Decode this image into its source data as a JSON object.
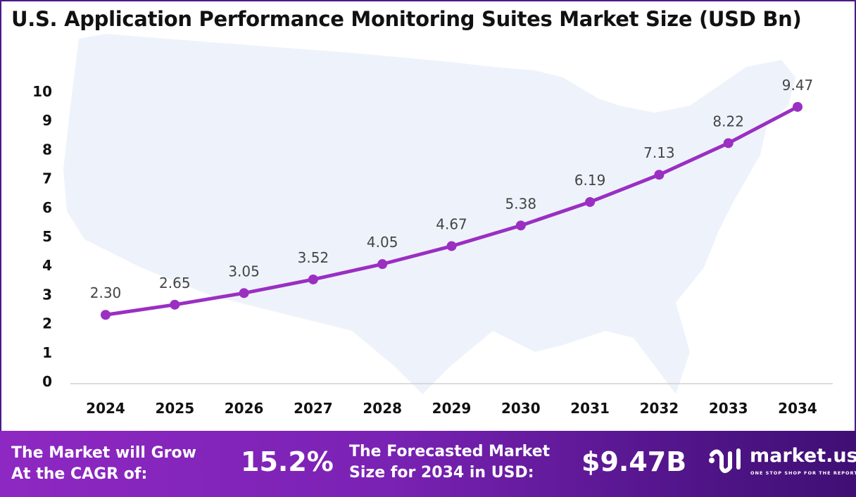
{
  "chart_data": {
    "type": "line",
    "title": "U.S. Application Performance Monitoring Suites Market Size (USD Bn)",
    "categories": [
      "2024",
      "2025",
      "2026",
      "2027",
      "2028",
      "2029",
      "2030",
      "2031",
      "2032",
      "2033",
      "2034"
    ],
    "series": [
      {
        "values": [
          2.3,
          2.65,
          3.05,
          3.52,
          4.05,
          4.67,
          5.38,
          6.19,
          7.13,
          8.22,
          9.47
        ]
      }
    ],
    "data_labels": [
      "2.30",
      "2.65",
      "3.05",
      "3.52",
      "4.05",
      "4.67",
      "5.38",
      "6.19",
      "7.13",
      "8.22",
      "9.47"
    ],
    "yticks": [
      "0",
      "1",
      "2",
      "3",
      "4",
      "5",
      "6",
      "7",
      "8",
      "9",
      "10"
    ],
    "ylim": [
      0,
      10
    ],
    "grid": false,
    "line_color": "#9a2fc2",
    "background": "US map silhouette"
  },
  "footer": {
    "cagr_label_line1": "The Market will Grow",
    "cagr_label_line2": "At the CAGR of:",
    "cagr_value": "15.2%",
    "forecast_label_line1": "The Forecasted Market",
    "forecast_label_line2": "Size for 2034 in USD:",
    "forecast_value": "$9.47B",
    "logo_name": "market.us",
    "logo_tagline": "ONE STOP SHOP FOR THE REPORTS"
  }
}
